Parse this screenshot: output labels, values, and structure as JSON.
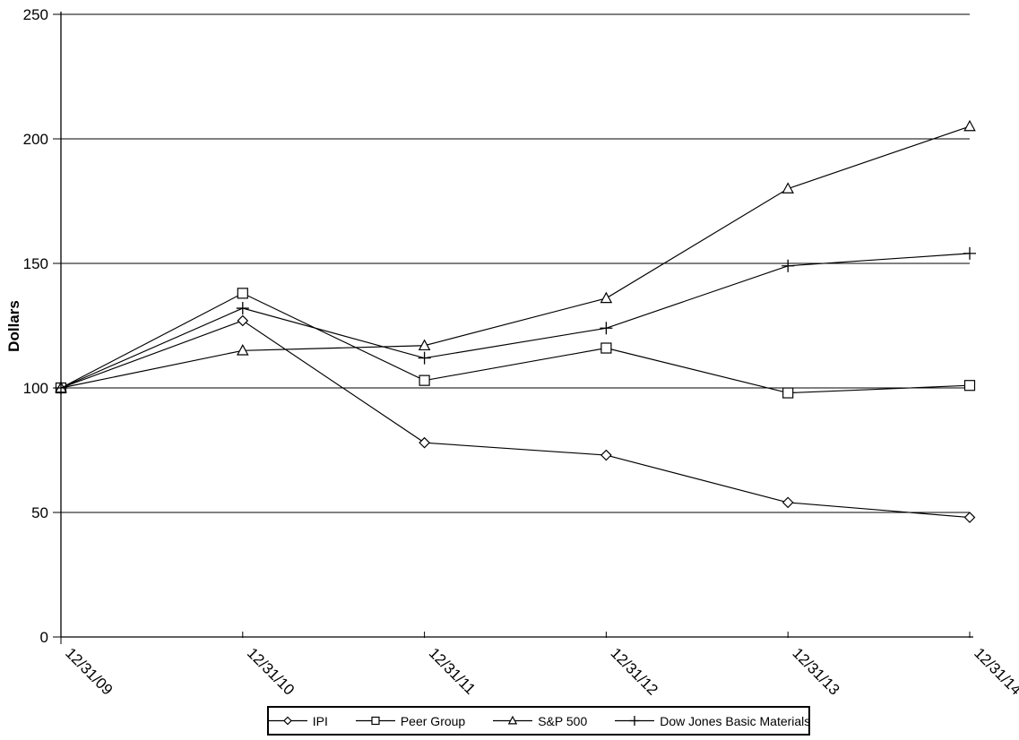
{
  "chart_data": {
    "type": "line",
    "title": "",
    "xlabel": "",
    "ylabel": "Dollars",
    "categories": [
      "12/31/09",
      "12/31/10",
      "12/31/11",
      "12/31/12",
      "12/31/13",
      "12/31/14"
    ],
    "series": [
      {
        "name": "IPI",
        "marker": "diamond",
        "values": [
          100,
          127,
          78,
          73,
          54,
          48
        ]
      },
      {
        "name": "Peer Group",
        "marker": "square",
        "values": [
          100,
          138,
          103,
          116,
          98,
          101
        ]
      },
      {
        "name": "S&P 500",
        "marker": "triangle",
        "values": [
          100,
          115,
          117,
          136,
          180,
          205
        ]
      },
      {
        "name": "Dow Jones Basic Materials",
        "marker": "plus",
        "values": [
          100,
          132,
          112,
          124,
          149,
          154
        ]
      }
    ],
    "ylim": [
      0,
      250
    ],
    "yticks": [
      0,
      50,
      100,
      150,
      200,
      250
    ],
    "grid": "horizontal-gridlines",
    "legend_position": "bottom-center",
    "line_color": "#000000",
    "marker_fill": "#ffffff",
    "text_color": "#000000",
    "background": "#ffffff"
  }
}
